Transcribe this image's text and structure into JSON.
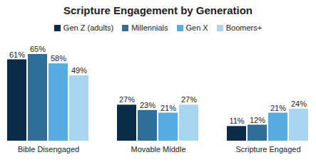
{
  "chart_data": {
    "type": "bar",
    "title": "Scripture Engagement by Generation",
    "categories": [
      "Bible Disengaged",
      "Movable Middle",
      "Scripture Engaged"
    ],
    "series": [
      {
        "name": "Gen Z (adults)",
        "color": "#0b2c48",
        "values": [
          61,
          27,
          11
        ],
        "value_labels": [
          "61%",
          "27%",
          "11%"
        ]
      },
      {
        "name": "Millennials",
        "color": "#2f6e98",
        "values": [
          65,
          23,
          12
        ],
        "value_labels": [
          "65%",
          "23%",
          "12%"
        ]
      },
      {
        "name": "Gen X",
        "color": "#55ade3",
        "values": [
          58,
          21,
          21
        ],
        "value_labels": [
          "58%",
          "21%",
          "21%"
        ]
      },
      {
        "name": "Boomers+",
        "color": "#a8d6f1",
        "values": [
          49,
          27,
          24
        ],
        "value_labels": [
          "49%",
          "27%",
          "24%"
        ]
      }
    ],
    "ylim": [
      0,
      65
    ],
    "yticks": [],
    "grid": false,
    "legend": "top",
    "data_labels": true,
    "tick_labels": "x"
  }
}
